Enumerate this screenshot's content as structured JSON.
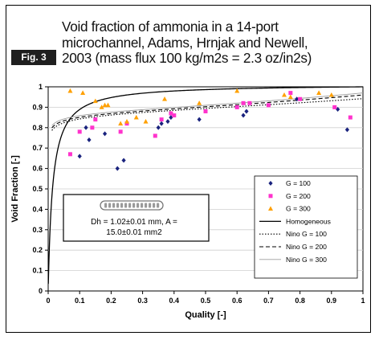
{
  "figure": {
    "label": "Fig. 3",
    "title": "Void fraction of ammonia in a 14-port microchannel, Adams, Hrnjak and Newell, 2003 (mass flux 100 kg/m2s = 2.3 oz/in2s)"
  },
  "chart_data": {
    "type": "scatter",
    "xlabel": "Quality [-]",
    "ylabel": "Void Fraction [-]",
    "xlim": [
      0,
      1
    ],
    "ylim": [
      0,
      1
    ],
    "xticks": [
      "0",
      "0.1",
      "0.2",
      "0.3",
      "0.4",
      "0.5",
      "0.6",
      "0.7",
      "0.8",
      "0.9",
      "1"
    ],
    "yticks": [
      "0",
      "0.1",
      "0.2",
      "0.3",
      "0.4",
      "0.5",
      "0.6",
      "0.7",
      "0.8",
      "0.9",
      "1"
    ],
    "grid": "horizontal",
    "legend_position": "bottom-right",
    "annotation": {
      "line1": "Dh = 1.02±0.01 mm, A =",
      "line2": "15.0±0.01 mm2"
    },
    "series": [
      {
        "name": "G = 100",
        "marker": "diamond",
        "color": "#1a237e",
        "x": [
          0.1,
          0.13,
          0.18,
          0.22,
          0.24,
          0.35,
          0.36,
          0.38,
          0.39,
          0.48,
          0.62,
          0.63,
          0.79,
          0.92,
          0.95,
          0.12
        ],
        "y": [
          0.66,
          0.74,
          0.77,
          0.6,
          0.64,
          0.8,
          0.82,
          0.83,
          0.85,
          0.84,
          0.86,
          0.88,
          0.94,
          0.89,
          0.79,
          0.8
        ]
      },
      {
        "name": "G = 200",
        "marker": "square",
        "color": "#ff33cc",
        "x": [
          0.07,
          0.1,
          0.14,
          0.15,
          0.23,
          0.25,
          0.34,
          0.36,
          0.39,
          0.4,
          0.5,
          0.6,
          0.62,
          0.64,
          0.7,
          0.77,
          0.8,
          0.91,
          0.96
        ],
        "y": [
          0.67,
          0.78,
          0.8,
          0.84,
          0.78,
          0.82,
          0.76,
          0.84,
          0.87,
          0.86,
          0.88,
          0.9,
          0.92,
          0.92,
          0.91,
          0.97,
          0.94,
          0.9,
          0.85
        ]
      },
      {
        "name": "G = 300",
        "marker": "triangle",
        "color": "#ffa000",
        "x": [
          0.07,
          0.11,
          0.15,
          0.17,
          0.18,
          0.19,
          0.23,
          0.25,
          0.28,
          0.31,
          0.37,
          0.48,
          0.6,
          0.75,
          0.77,
          0.86,
          0.9
        ],
        "y": [
          0.98,
          0.97,
          0.93,
          0.9,
          0.91,
          0.91,
          0.82,
          0.83,
          0.85,
          0.83,
          0.94,
          0.92,
          0.98,
          0.96,
          0.95,
          0.97,
          0.96
        ]
      }
    ],
    "models": [
      {
        "name": "Homogeneous",
        "style": "solid",
        "color": "#000000"
      },
      {
        "name": "Nino  G = 100",
        "style": "dotted",
        "color": "#000000"
      },
      {
        "name": "Nino  G = 200",
        "style": "dashed",
        "color": "#000000"
      },
      {
        "name": "Nino  G = 300",
        "style": "solid-thin",
        "color": "#9e9e9e"
      }
    ]
  }
}
